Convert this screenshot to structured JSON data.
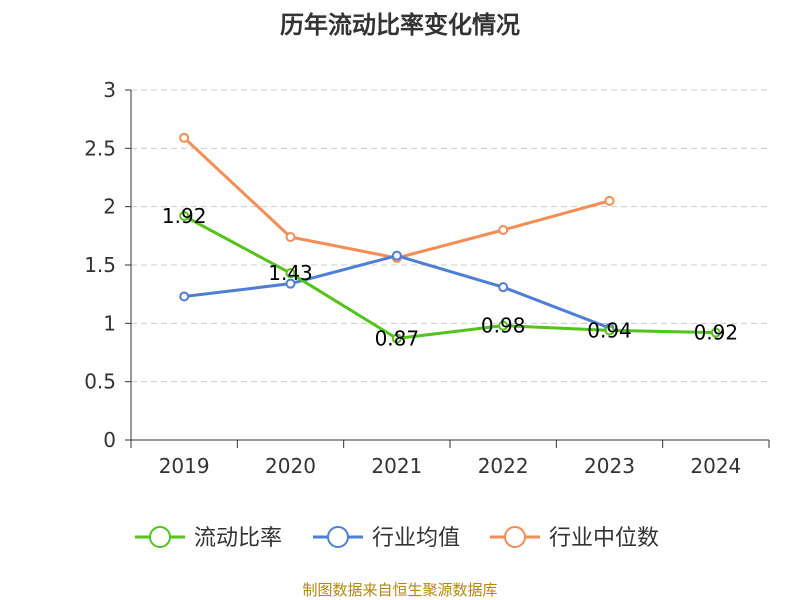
{
  "chart_data": {
    "type": "line",
    "title": "历年流动比率变化情况",
    "categories": [
      "2019",
      "2020",
      "2021",
      "2022",
      "2023",
      "2024"
    ],
    "ylim": [
      0,
      3
    ],
    "yticks": [
      "0",
      "0.5",
      "1",
      "1.5",
      "2",
      "2.5",
      "3"
    ],
    "grid": true,
    "legend_position": "bottom",
    "series": [
      {
        "name": "流动比率",
        "color": "#52c41a",
        "values": [
          1.92,
          1.43,
          0.87,
          0.98,
          0.94,
          0.92
        ],
        "labels": [
          "1.92",
          "1.43",
          "0.87",
          "0.98",
          "0.94",
          "0.92"
        ]
      },
      {
        "name": "行业均值",
        "color": "#4d7fd9",
        "values": [
          1.23,
          1.34,
          1.58,
          1.31,
          0.96,
          null
        ]
      },
      {
        "name": "行业中位数",
        "color": "#f58d54",
        "values": [
          2.59,
          1.74,
          1.56,
          1.8,
          2.05,
          null
        ]
      }
    ]
  },
  "footer": {
    "source": "制图数据来自恒生聚源数据库"
  }
}
